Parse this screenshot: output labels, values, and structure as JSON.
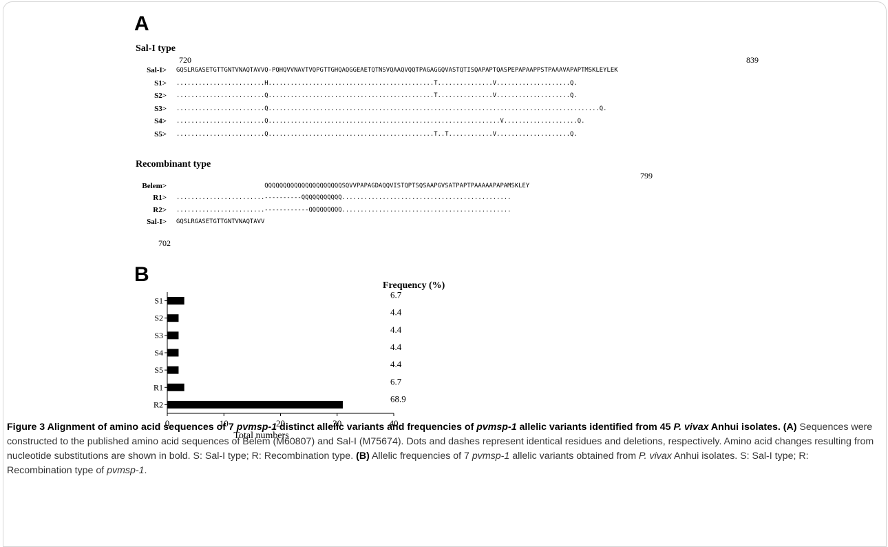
{
  "panel_a": {
    "label": "A",
    "sal_section": {
      "title": "Sal-I type",
      "start_num": "720",
      "end_num": "839",
      "rows": [
        {
          "name": "Sal-I>",
          "seq": "GQSLRGASETGTTGNTVNAQTAVVQ-PQHQVVNAVTVQPGTTGHQAQGGEAETQTNSVQAAQVQQTPAGAGGQVASTQTISQAPAPTQASPEPAPAAPPSTPAAAVAPAPTMSKLEYLEK"
        },
        {
          "name": "S1>",
          "seq": "........................H.............................................T...............V....................Q."
        },
        {
          "name": "S2>",
          "seq": "........................Q.............................................T...............V....................Q."
        },
        {
          "name": "S3>",
          "seq": "........................Q..........................................................................................Q."
        },
        {
          "name": "S4>",
          "seq": "........................Q...............................................................V....................Q."
        },
        {
          "name": "S5>",
          "seq": "........................Q.............................................T..T............V....................Q."
        }
      ]
    },
    "rec_section": {
      "title": "Recombinant type",
      "end_num": "799",
      "bottom_num": "702",
      "rows": [
        {
          "name": "Belem>",
          "seq": "                        QQQQQQQQQQQQQQQQQQQQQSQVVPAPAGDAQQVISTQPTSQSAAPGVSATPAPTPAAAAAPAPAMSKLEY"
        },
        {
          "name": "R1>",
          "seq": "........................----------QQQQQQQQQQQ.............................................."
        },
        {
          "name": "R2>",
          "seq": "........................------------QQQQQQQQQ.............................................."
        },
        {
          "name": "Sal-I>",
          "seq": "GQSLRGASETGTTGNTVNAQTAVV"
        }
      ]
    }
  },
  "panel_b": {
    "label": "B",
    "freq_header": "Frequency (%)",
    "x_title": "Total numbers"
  },
  "chart_data": {
    "type": "bar",
    "orientation": "horizontal",
    "categories": [
      "S1",
      "S2",
      "S3",
      "S4",
      "S5",
      "R1",
      "R2"
    ],
    "values": [
      3,
      2,
      2,
      2,
      2,
      3,
      31
    ],
    "frequency_labels": [
      "6.7",
      "4.4",
      "4.4",
      "4.4",
      "4.4",
      "6.7",
      "68.9"
    ],
    "xlabel": "Total numbers",
    "xlim": [
      0,
      40
    ],
    "xticks": [
      "0",
      "10",
      "20",
      "30",
      "40"
    ],
    "bar_color": "#000000"
  },
  "caption": {
    "fig_label": "Figure 3",
    "p1_a": " Alignment of amino acid sequences of 7 ",
    "gene": "pvmsp-1",
    "p1_b": " distinct allelic variants and frequencies of ",
    "p1_c": " allelic variants identified from 45 ",
    "species": "P. vivax",
    "p1_d": " Anhui isolates.",
    "a_mark": "(A)",
    "a_text": " Sequences were constructed to the published amino acid sequences of Belem (M60807) and Sal-I (M75674). Dots and dashes represent identical residues and deletions, respectively. Amino acid changes resulting from nucleotide substitutions are shown in bold. S: Sal-I type; R: Recombination type.",
    "b_mark": "(B)",
    "b_text_1": " Allelic frequencies of 7 ",
    "b_text_2": " allelic variants obtained from ",
    "b_text_3": " Anhui isolates. S: Sal-I type; R: Recombination type of ",
    "b_text_4": "."
  }
}
